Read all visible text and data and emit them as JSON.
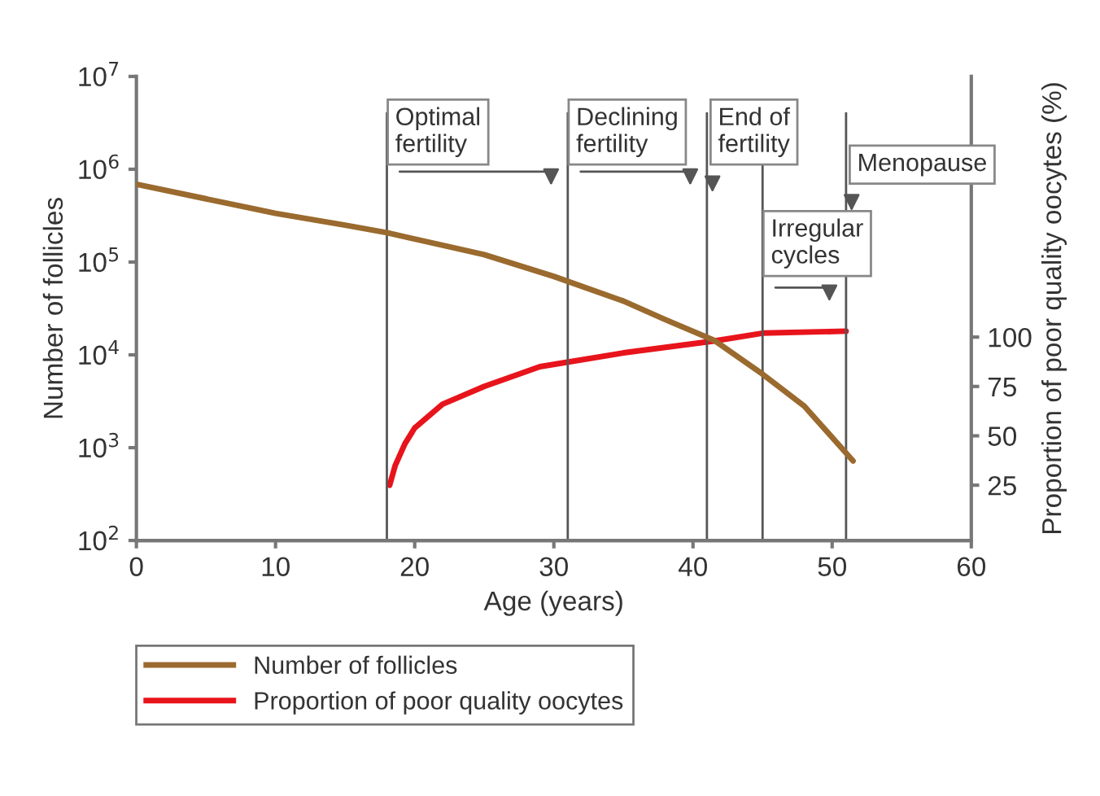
{
  "chart_data": {
    "type": "line",
    "xlabel": "Age (years)",
    "ylabel": "Number of follicles",
    "y2label": "Proportion of poor quality oocytes (%)",
    "log": "y",
    "xlim": [
      0,
      60
    ],
    "xticks": [
      0,
      10,
      20,
      30,
      40,
      50,
      60
    ],
    "ylim": [
      100,
      10000000
    ],
    "yticks": [
      {
        "value": 100,
        "label": "10$^{2}$"
      },
      {
        "value": 1000,
        "label": "10$^{3}$"
      },
      {
        "value": 10000,
        "label": "10$^{4}$"
      },
      {
        "value": 100000,
        "label": "10$^{5}$"
      },
      {
        "value": 1000000,
        "label": "10$^{6}$"
      },
      {
        "value": 10000000,
        "label": "10$^{7}$"
      }
    ],
    "y2lim": [
      -3,
      232
    ],
    "y2ticks": [
      25,
      50,
      75,
      100
    ],
    "series": [
      {
        "name": "Number of follicles",
        "color": "#9a6a2e",
        "axis": "y",
        "x": [
          0,
          5,
          10,
          15,
          18,
          25,
          30,
          35,
          38,
          41.5,
          45,
          48,
          51.5
        ],
        "values": [
          690000,
          480000,
          335000,
          250000,
          207000,
          120000,
          70000,
          38000,
          24000,
          14400,
          6200,
          2800,
          720
        ]
      },
      {
        "name": "Proportion of poor quality oocytes",
        "color": "#e8141c",
        "axis": "y2",
        "x": [
          18.2,
          18.6,
          19.3,
          20,
          22,
          25,
          29,
          35,
          41.5,
          45,
          51
        ],
        "values": [
          25,
          35,
          46,
          54,
          66,
          75,
          85,
          92,
          98,
          102,
          103
        ]
      }
    ],
    "ref_lines": [
      {
        "axis": "x",
        "value": 18,
        "label": "Optimal\nfertility",
        "color": "#555555"
      },
      {
        "axis": "x",
        "value": 31,
        "label": "Declining\nfertility",
        "color": "#555555"
      },
      {
        "axis": "x",
        "value": 41,
        "label": "End of\nfertility",
        "color": "#555555"
      },
      {
        "axis": "x",
        "value": 45,
        "label": "Irregular\ncycles",
        "color": "#555555"
      },
      {
        "axis": "x",
        "value": 51,
        "label": "Menopause",
        "color": "#555555"
      }
    ],
    "grid": false,
    "legend": "bottom",
    "marker": "none",
    "line_style": "solid"
  }
}
